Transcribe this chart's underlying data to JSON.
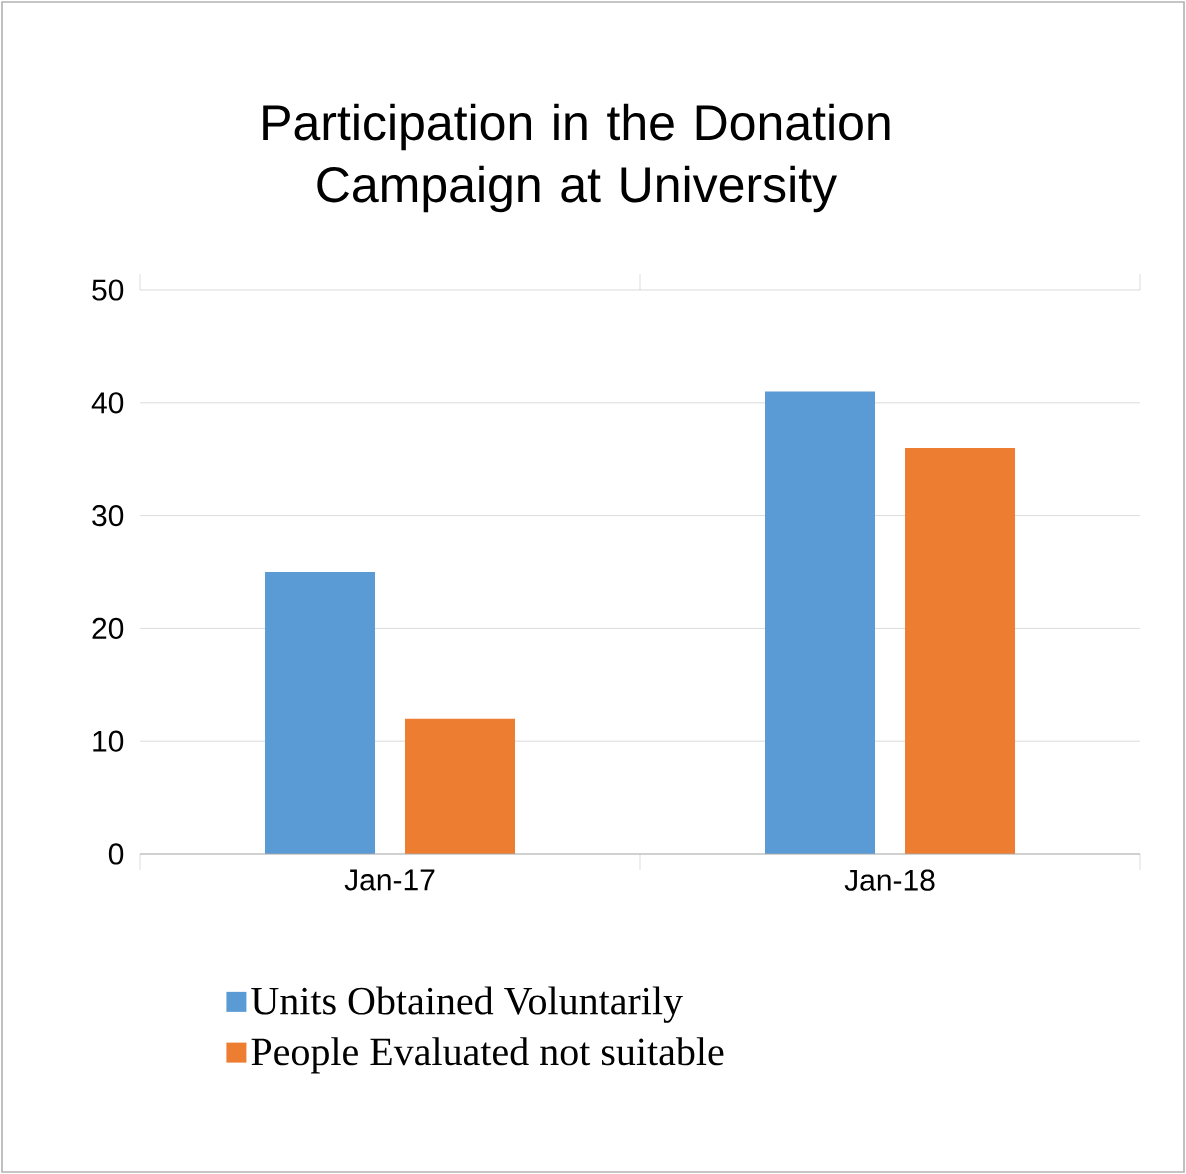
{
  "chart_data": {
    "type": "bar",
    "title": "Participation in the Donation Campaign at University",
    "categories": [
      "Jan-17",
      "Jan-18"
    ],
    "series": [
      {
        "name": "Units Obtained Voluntarily",
        "color": "#5b9bd5",
        "values": [
          25,
          41
        ]
      },
      {
        "name": "People Evaluated not suitable",
        "color": "#ed7d31",
        "values": [
          12,
          36
        ]
      }
    ],
    "ylim": [
      0,
      50
    ],
    "yticks": [
      0,
      10,
      20,
      30,
      40,
      50
    ],
    "grid": "y",
    "legend": "bottom"
  }
}
